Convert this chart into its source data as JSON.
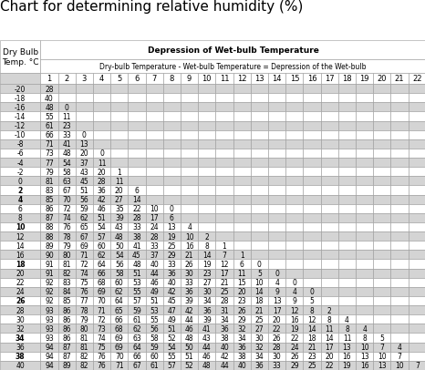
{
  "title": "Chart for determining relative humidity (%)",
  "header_col": "Dry Bulb\nTemp. °C",
  "header_main": "Depression of Wet-bulb Temperature",
  "header_sub": "Dry-bulb Temperature - Wet-bulb Temperature = Depression of the Wet-bulb",
  "col_headers": [
    "1",
    "2",
    "3",
    "4",
    "5",
    "6",
    "7",
    "8",
    "9",
    "10",
    "11",
    "12",
    "13",
    "14",
    "15",
    "16",
    "17",
    "18",
    "19",
    "20",
    "21",
    "22"
  ],
  "rows": [
    {
      "temp": "-20",
      "bold": false,
      "values": [
        "28",
        "",
        "",
        "",
        "",
        "",
        "",
        "",
        "",
        "",
        "",
        "",
        "",
        "",
        "",
        "",
        "",
        "",
        "",
        "",
        "",
        ""
      ]
    },
    {
      "temp": "-18",
      "bold": false,
      "values": [
        "40",
        "",
        "",
        "",
        "",
        "",
        "",
        "",
        "",
        "",
        "",
        "",
        "",
        "",
        "",
        "",
        "",
        "",
        "",
        "",
        "",
        ""
      ]
    },
    {
      "temp": "-16",
      "bold": false,
      "values": [
        "48",
        "0",
        "",
        "",
        "",
        "",
        "",
        "",
        "",
        "",
        "",
        "",
        "",
        "",
        "",
        "",
        "",
        "",
        "",
        "",
        "",
        ""
      ]
    },
    {
      "temp": "-14",
      "bold": false,
      "values": [
        "55",
        "11",
        "",
        "",
        "",
        "",
        "",
        "",
        "",
        "",
        "",
        "",
        "",
        "",
        "",
        "",
        "",
        "",
        "",
        "",
        "",
        ""
      ]
    },
    {
      "temp": "-12",
      "bold": false,
      "values": [
        "61",
        "23",
        "",
        "",
        "",
        "",
        "",
        "",
        "",
        "",
        "",
        "",
        "",
        "",
        "",
        "",
        "",
        "",
        "",
        "",
        "",
        ""
      ]
    },
    {
      "temp": "-10",
      "bold": false,
      "values": [
        "66",
        "33",
        "0",
        "",
        "",
        "",
        "",
        "",
        "",
        "",
        "",
        "",
        "",
        "",
        "",
        "",
        "",
        "",
        "",
        "",
        "",
        ""
      ]
    },
    {
      "temp": "-8",
      "bold": false,
      "values": [
        "71",
        "41",
        "13",
        "",
        "",
        "",
        "",
        "",
        "",
        "",
        "",
        "",
        "",
        "",
        "",
        "",
        "",
        "",
        "",
        "",
        "",
        ""
      ]
    },
    {
      "temp": "-6",
      "bold": false,
      "values": [
        "73",
        "48",
        "20",
        "0",
        "",
        "",
        "",
        "",
        "",
        "",
        "",
        "",
        "",
        "",
        "",
        "",
        "",
        "",
        "",
        "",
        "",
        ""
      ]
    },
    {
      "temp": "-4",
      "bold": false,
      "values": [
        "77",
        "54",
        "37",
        "11",
        "",
        "",
        "",
        "",
        "",
        "",
        "",
        "",
        "",
        "",
        "",
        "",
        "",
        "",
        "",
        "",
        "",
        ""
      ]
    },
    {
      "temp": "-2",
      "bold": false,
      "values": [
        "79",
        "58",
        "43",
        "20",
        "1",
        "",
        "",
        "",
        "",
        "",
        "",
        "",
        "",
        "",
        "",
        "",
        "",
        "",
        "",
        "",
        "",
        ""
      ]
    },
    {
      "temp": "0",
      "bold": false,
      "values": [
        "81",
        "63",
        "45",
        "28",
        "11",
        "",
        "",
        "",
        "",
        "",
        "",
        "",
        "",
        "",
        "",
        "",
        "",
        "",
        "",
        "",
        "",
        ""
      ]
    },
    {
      "temp": "2",
      "bold": true,
      "values": [
        "83",
        "67",
        "51",
        "36",
        "20",
        "6",
        "",
        "",
        "",
        "",
        "",
        "",
        "",
        "",
        "",
        "",
        "",
        "",
        "",
        "",
        "",
        ""
      ]
    },
    {
      "temp": "4",
      "bold": true,
      "values": [
        "85",
        "70",
        "56",
        "42",
        "27",
        "14",
        "",
        "",
        "",
        "",
        "",
        "",
        "",
        "",
        "",
        "",
        "",
        "",
        "",
        "",
        "",
        ""
      ]
    },
    {
      "temp": "6",
      "bold": false,
      "values": [
        "86",
        "72",
        "59",
        "46",
        "35",
        "22",
        "10",
        "0",
        "",
        "",
        "",
        "",
        "",
        "",
        "",
        "",
        "",
        "",
        "",
        "",
        "",
        ""
      ]
    },
    {
      "temp": "8",
      "bold": false,
      "values": [
        "87",
        "74",
        "62",
        "51",
        "39",
        "28",
        "17",
        "6",
        "",
        "",
        "",
        "",
        "",
        "",
        "",
        "",
        "",
        "",
        "",
        "",
        "",
        ""
      ]
    },
    {
      "temp": "10",
      "bold": true,
      "values": [
        "88",
        "76",
        "65",
        "54",
        "43",
        "33",
        "24",
        "13",
        "4",
        "",
        "",
        "",
        "",
        "",
        "",
        "",
        "",
        "",
        "",
        "",
        "",
        ""
      ]
    },
    {
      "temp": "12",
      "bold": false,
      "values": [
        "88",
        "78",
        "67",
        "57",
        "48",
        "38",
        "28",
        "19",
        "10",
        "2",
        "",
        "",
        "",
        "",
        "",
        "",
        "",
        "",
        "",
        "",
        "",
        ""
      ]
    },
    {
      "temp": "14",
      "bold": false,
      "values": [
        "89",
        "79",
        "69",
        "60",
        "50",
        "41",
        "33",
        "25",
        "16",
        "8",
        "1",
        "",
        "",
        "",
        "",
        "",
        "",
        "",
        "",
        "",
        "",
        ""
      ]
    },
    {
      "temp": "16",
      "bold": false,
      "values": [
        "90",
        "80",
        "71",
        "62",
        "54",
        "45",
        "37",
        "29",
        "21",
        "14",
        "7",
        "1",
        "",
        "",
        "",
        "",
        "",
        "",
        "",
        "",
        "",
        ""
      ]
    },
    {
      "temp": "18",
      "bold": true,
      "values": [
        "91",
        "81",
        "72",
        "64",
        "56",
        "48",
        "40",
        "33",
        "26",
        "19",
        "12",
        "6",
        "0",
        "",
        "",
        "",
        "",
        "",
        "",
        "",
        "",
        ""
      ]
    },
    {
      "temp": "20",
      "bold": false,
      "values": [
        "91",
        "82",
        "74",
        "66",
        "58",
        "51",
        "44",
        "36",
        "30",
        "23",
        "17",
        "11",
        "5",
        "0",
        "",
        "",
        "",
        "",
        "",
        "",
        "",
        ""
      ]
    },
    {
      "temp": "22",
      "bold": false,
      "values": [
        "92",
        "83",
        "75",
        "68",
        "60",
        "53",
        "46",
        "40",
        "33",
        "27",
        "21",
        "15",
        "10",
        "4",
        "0",
        "",
        "",
        "",
        "",
        "",
        "",
        ""
      ]
    },
    {
      "temp": "24",
      "bold": false,
      "values": [
        "92",
        "84",
        "76",
        "69",
        "62",
        "55",
        "49",
        "42",
        "36",
        "30",
        "25",
        "20",
        "14",
        "9",
        "4",
        "0",
        "",
        "",
        "",
        "",
        "",
        ""
      ]
    },
    {
      "temp": "26",
      "bold": true,
      "values": [
        "92",
        "85",
        "77",
        "70",
        "64",
        "57",
        "51",
        "45",
        "39",
        "34",
        "28",
        "23",
        "18",
        "13",
        "9",
        "5",
        "",
        "",
        "",
        "",
        "",
        ""
      ]
    },
    {
      "temp": "28",
      "bold": false,
      "values": [
        "93",
        "86",
        "78",
        "71",
        "65",
        "59",
        "53",
        "47",
        "42",
        "36",
        "31",
        "26",
        "21",
        "17",
        "12",
        "8",
        "2",
        "",
        "",
        "",
        "",
        ""
      ]
    },
    {
      "temp": "30",
      "bold": false,
      "values": [
        "93",
        "86",
        "79",
        "72",
        "66",
        "61",
        "55",
        "49",
        "44",
        "39",
        "34",
        "29",
        "25",
        "20",
        "16",
        "12",
        "8",
        "4",
        "",
        "",
        "",
        ""
      ]
    },
    {
      "temp": "32",
      "bold": false,
      "values": [
        "93",
        "86",
        "80",
        "73",
        "68",
        "62",
        "56",
        "51",
        "46",
        "41",
        "36",
        "32",
        "27",
        "22",
        "19",
        "14",
        "11",
        "8",
        "4",
        "",
        "",
        ""
      ]
    },
    {
      "temp": "34",
      "bold": true,
      "values": [
        "93",
        "86",
        "81",
        "74",
        "69",
        "63",
        "58",
        "52",
        "48",
        "43",
        "38",
        "34",
        "30",
        "26",
        "22",
        "18",
        "14",
        "11",
        "8",
        "5",
        "",
        ""
      ]
    },
    {
      "temp": "36",
      "bold": false,
      "values": [
        "94",
        "87",
        "81",
        "75",
        "69",
        "64",
        "59",
        "54",
        "50",
        "44",
        "40",
        "36",
        "32",
        "28",
        "24",
        "21",
        "17",
        "13",
        "10",
        "7",
        "4",
        ""
      ]
    },
    {
      "temp": "38",
      "bold": true,
      "values": [
        "94",
        "87",
        "82",
        "76",
        "70",
        "66",
        "60",
        "55",
        "51",
        "46",
        "42",
        "38",
        "34",
        "30",
        "26",
        "23",
        "20",
        "16",
        "13",
        "10",
        "7",
        ""
      ]
    },
    {
      "temp": "40",
      "bold": false,
      "values": [
        "94",
        "89",
        "82",
        "76",
        "71",
        "67",
        "61",
        "57",
        "52",
        "48",
        "44",
        "40",
        "36",
        "33",
        "29",
        "25",
        "22",
        "19",
        "16",
        "13",
        "10",
        "7"
      ]
    }
  ],
  "bg_gray": "#d4d4d4",
  "bg_white": "#ffffff",
  "border_color": "#999999",
  "title_fontsize": 11,
  "data_fontsize": 5.5,
  "header_fontsize": 6.5,
  "sub_fontsize": 5.5,
  "colnum_fontsize": 6.0
}
